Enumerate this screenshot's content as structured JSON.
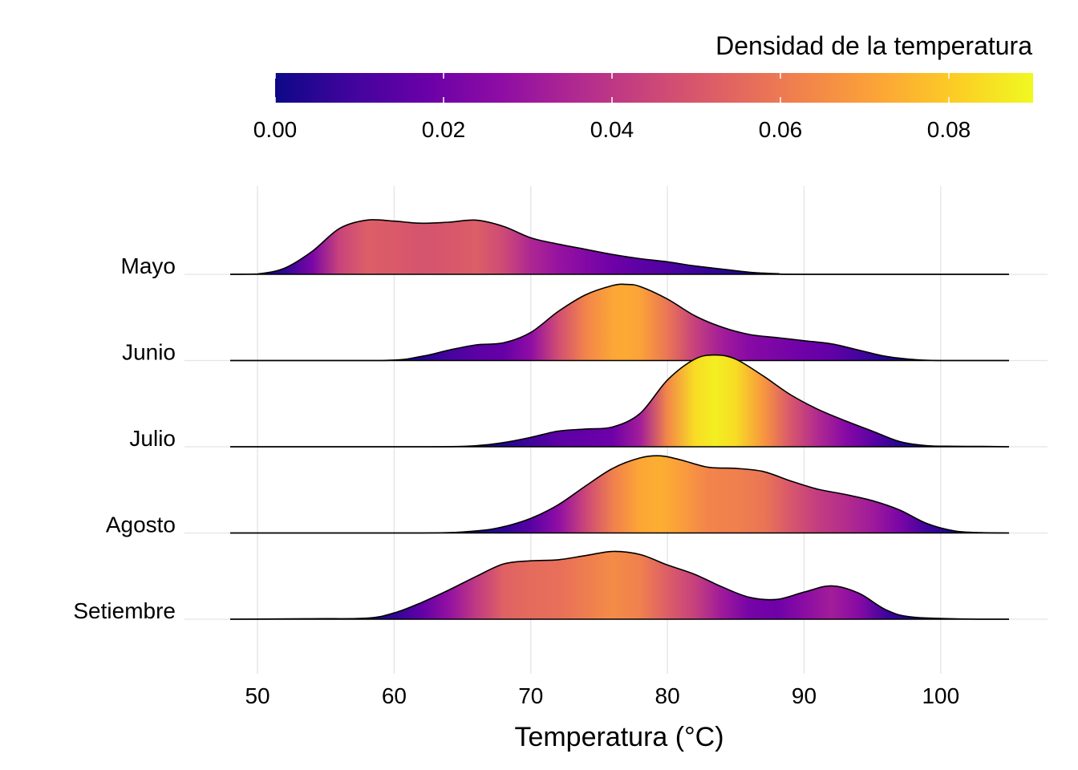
{
  "chart_data": {
    "type": "ridgeline",
    "xlabel": "Temperatura (°C)",
    "xlim": [
      48,
      105
    ],
    "x_ticks": [
      50,
      60,
      70,
      80,
      90,
      100
    ],
    "x_tick_labels": [
      "50",
      "60",
      "70",
      "80",
      "90",
      "100"
    ],
    "grid": true,
    "legend": {
      "title": "Densidad de la temperatura",
      "placement": "top-right",
      "range": [
        0.0,
        0.09
      ],
      "ticks": [
        0.0,
        0.02,
        0.04,
        0.06,
        0.08
      ],
      "tick_labels": [
        "0.00",
        "0.02",
        "0.04",
        "0.06",
        "0.08"
      ],
      "palette": [
        "#0d0887",
        "#41049d",
        "#6a00a8",
        "#8f0da4",
        "#b12a90",
        "#cc4778",
        "#e16462",
        "#f2844b",
        "#fca636",
        "#fcce25",
        "#f0f921"
      ]
    },
    "categories": [
      "Mayo",
      "Junio",
      "Julio",
      "Agosto",
      "Setiembre"
    ],
    "series": [
      {
        "name": "Mayo",
        "x": [
          48,
          50,
          52,
          54,
          56,
          58,
          60,
          62,
          64,
          66,
          68,
          70,
          72,
          74,
          76,
          78,
          80,
          82,
          84,
          86,
          88,
          90,
          105
        ],
        "density": [
          0.0,
          0.0004,
          0.006,
          0.022,
          0.044,
          0.052,
          0.051,
          0.049,
          0.05,
          0.052,
          0.046,
          0.035,
          0.029,
          0.024,
          0.019,
          0.015,
          0.012,
          0.008,
          0.005,
          0.002,
          0.0006,
          0.0,
          0.0
        ]
      },
      {
        "name": "Junio",
        "x": [
          48,
          59,
          62,
          64,
          66,
          68,
          70,
          72,
          74,
          76,
          77,
          78,
          80,
          82,
          84,
          86,
          88,
          90,
          92,
          94,
          96,
          98,
          100,
          105
        ],
        "density": [
          0.0,
          0.0,
          0.004,
          0.01,
          0.015,
          0.017,
          0.027,
          0.047,
          0.063,
          0.072,
          0.073,
          0.071,
          0.059,
          0.043,
          0.032,
          0.025,
          0.022,
          0.019,
          0.016,
          0.01,
          0.004,
          0.001,
          0.0,
          0.0
        ]
      },
      {
        "name": "Julio",
        "x": [
          48,
          62,
          66,
          68,
          70,
          72,
          74,
          76,
          78,
          80,
          82,
          83.5,
          85,
          87,
          89,
          91,
          93,
          95,
          97,
          99,
          101,
          103,
          105
        ],
        "density": [
          0.0,
          0.0,
          0.001,
          0.004,
          0.009,
          0.015,
          0.017,
          0.019,
          0.032,
          0.064,
          0.084,
          0.088,
          0.084,
          0.068,
          0.05,
          0.036,
          0.025,
          0.015,
          0.005,
          0.001,
          0.0005,
          0.0003,
          0.0
        ]
      },
      {
        "name": "Agosto",
        "x": [
          48,
          62,
          66,
          68,
          70,
          72,
          74,
          76,
          78,
          79.5,
          81,
          83,
          85,
          87,
          89,
          91,
          93,
          95,
          97,
          99,
          101,
          103,
          105
        ],
        "density": [
          0.0,
          0.0,
          0.002,
          0.006,
          0.014,
          0.027,
          0.045,
          0.062,
          0.072,
          0.074,
          0.07,
          0.063,
          0.062,
          0.059,
          0.05,
          0.042,
          0.037,
          0.031,
          0.022,
          0.009,
          0.002,
          0.0003,
          0.0
        ]
      },
      {
        "name": "Setiembre",
        "x": [
          48,
          54,
          58,
          60,
          62,
          64,
          66,
          68,
          70,
          72,
          74,
          76,
          78,
          80,
          82,
          84,
          86,
          88,
          90,
          92,
          94,
          96,
          98,
          103,
          105
        ],
        "density": [
          0.0,
          0.0005,
          0.001,
          0.006,
          0.016,
          0.028,
          0.041,
          0.053,
          0.056,
          0.057,
          0.061,
          0.065,
          0.062,
          0.052,
          0.043,
          0.031,
          0.021,
          0.019,
          0.026,
          0.032,
          0.025,
          0.009,
          0.002,
          0.0,
          0.0
        ]
      }
    ]
  }
}
